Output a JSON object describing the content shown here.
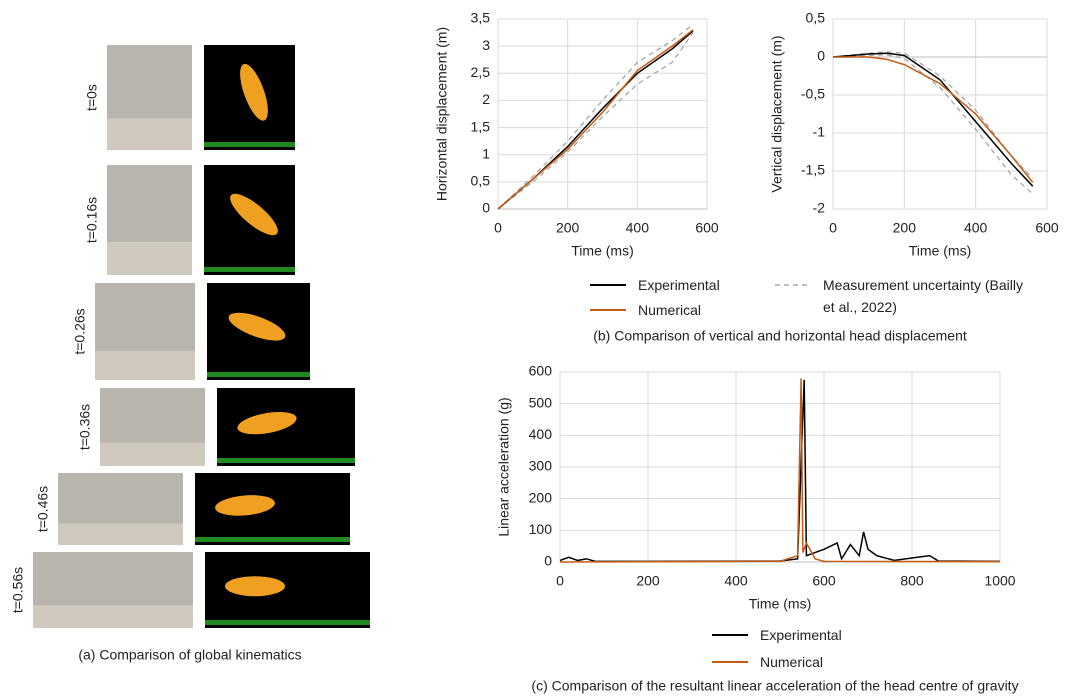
{
  "panel_a": {
    "frames": [
      "t=0s",
      "t=0.16s",
      "t=0.26s",
      "t=0.36s",
      "t=0.46s",
      "t=0.56s"
    ],
    "caption": "(a) Comparison of global kinematics"
  },
  "caption_b": "(b) Comparison of vertical and horizontal head displacement",
  "caption_c": "(c) Comparison of the resultant linear acceleration of the head centre of gravity",
  "chart_data": [
    {
      "type": "line",
      "xlabel": "Time (ms)",
      "ylabel": "Horizontal displacement (m)",
      "xlim": [
        0,
        600
      ],
      "xticks": [
        0,
        200,
        400,
        600
      ],
      "ylim": [
        0,
        3.5
      ],
      "yticks": [
        0,
        {
          "value": 0.5,
          "label": "0,5"
        },
        1,
        {
          "value": 1.5,
          "label": "1,5"
        },
        2,
        {
          "value": 2.5,
          "label": "2,5"
        },
        3,
        {
          "value": 3.5,
          "label": "3,5"
        }
      ],
      "grid": true,
      "series": [
        {
          "name": "Measurement uncertainty (Bailly et al., 2022)",
          "color": "#a6a6a6",
          "dash": true,
          "x": [
            0,
            100,
            200,
            300,
            400,
            500,
            560
          ],
          "values": [
            0,
            0.6,
            1.25,
            2.0,
            2.7,
            3.1,
            3.4
          ]
        },
        {
          "color": "#a6a6a6",
          "dash": true,
          "x": [
            0,
            100,
            200,
            300,
            400,
            500,
            560
          ],
          "values": [
            0,
            0.5,
            1.05,
            1.7,
            2.3,
            2.7,
            3.25
          ]
        },
        {
          "name": "Experimental",
          "color": "#000000",
          "x": [
            0,
            100,
            200,
            300,
            400,
            500,
            560
          ],
          "values": [
            0,
            0.55,
            1.15,
            1.85,
            2.5,
            2.95,
            3.28
          ]
        },
        {
          "name": "Numerical",
          "color": "#c55a11",
          "x": [
            0,
            100,
            200,
            300,
            400,
            500,
            560
          ],
          "values": [
            0,
            0.55,
            1.1,
            1.78,
            2.55,
            3.0,
            3.3
          ]
        }
      ]
    },
    {
      "type": "line",
      "xlabel": "Time (ms)",
      "ylabel": "Vertical displacement (m)",
      "xlim": [
        0,
        600
      ],
      "xticks": [
        0,
        200,
        400,
        600
      ],
      "ylim": [
        -2,
        0.5
      ],
      "yticks": [
        {
          "value": 0.5,
          "label": "0,5"
        },
        0,
        {
          "value": -0.5,
          "label": "-0,5"
        },
        -1,
        {
          "value": -1.5,
          "label": "-1,5"
        },
        -2
      ],
      "grid": true,
      "series": [
        {
          "color": "#a6a6a6",
          "dash": true,
          "x": [
            0,
            100,
            150,
            200,
            300,
            400,
            500,
            560
          ],
          "values": [
            0,
            0.05,
            0.07,
            0.05,
            -0.25,
            -0.7,
            -1.3,
            -1.6
          ]
        },
        {
          "color": "#a6a6a6",
          "dash": true,
          "x": [
            0,
            100,
            150,
            200,
            300,
            400,
            500,
            560
          ],
          "values": [
            0,
            0.02,
            0.03,
            -0.02,
            -0.4,
            -0.95,
            -1.55,
            -1.8
          ]
        },
        {
          "color": "#000000",
          "x": [
            0,
            100,
            150,
            200,
            300,
            400,
            500,
            560
          ],
          "values": [
            0,
            0.04,
            0.05,
            0.02,
            -0.3,
            -0.85,
            -1.4,
            -1.7
          ]
        },
        {
          "color": "#c55a11",
          "x": [
            0,
            100,
            150,
            200,
            300,
            400,
            500,
            560
          ],
          "values": [
            0,
            0.0,
            -0.03,
            -0.1,
            -0.35,
            -0.75,
            -1.3,
            -1.65
          ]
        }
      ]
    },
    {
      "type": "line",
      "xlabel": "Time (ms)",
      "ylabel": "Linear acceleration (g)",
      "xlim": [
        0,
        1000
      ],
      "xticks": [
        0,
        200,
        400,
        600,
        800,
        1000
      ],
      "ylim": [
        0,
        600
      ],
      "yticks": [
        0,
        100,
        200,
        300,
        400,
        500,
        600
      ],
      "grid": true,
      "series": [
        {
          "name": "Experimental",
          "color": "#000000",
          "x": [
            0,
            20,
            40,
            60,
            80,
            200,
            500,
            540,
            555,
            560,
            600,
            630,
            640,
            660,
            680,
            690,
            700,
            720,
            760,
            840,
            860,
            1000
          ],
          "values": [
            5,
            15,
            5,
            10,
            2,
            2,
            3,
            10,
            575,
            20,
            40,
            60,
            10,
            55,
            20,
            95,
            40,
            20,
            5,
            20,
            3,
            2
          ]
        },
        {
          "name": "Numerical",
          "color": "#c55a11",
          "x": [
            0,
            500,
            540,
            548,
            552,
            560,
            580,
            600,
            1000
          ],
          "values": [
            0,
            2,
            20,
            580,
            30,
            60,
            10,
            2,
            1
          ]
        }
      ]
    }
  ]
}
